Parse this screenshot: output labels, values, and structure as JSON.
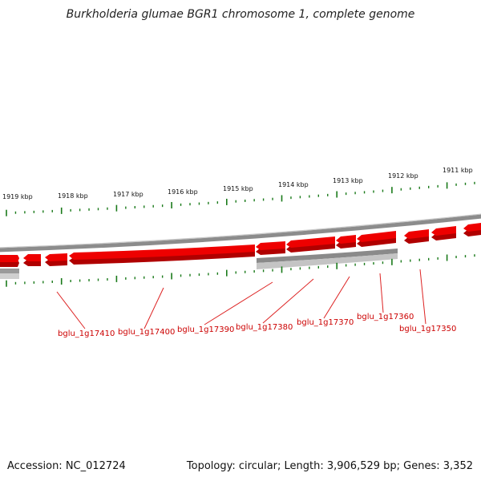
{
  "title": "Burkholderia glumae BGR1 chromosome 1, complete genome",
  "footer": {
    "accession": "Accession: NC_012724",
    "topology": "Topology: circular; Length: 3,906,529 bp; Genes: 3,352"
  },
  "colors": {
    "gene_forward": "#ee0000",
    "gene_shadow": "#b00000",
    "backbone": "#8c8c8c",
    "reverse_track": "#b8b8b8",
    "tick": "#1a7a1a",
    "label": "#cc0000"
  },
  "scale_labels": [
    "1919 kbp",
    "1918 kbp",
    "1917 kbp",
    "1916 kbp",
    "1915 kbp",
    "1914 kbp",
    "1913 kbp",
    "1912 kbp",
    "1911 kbp"
  ],
  "gene_labels": [
    "bglu_1g17410",
    "bglu_1g17400",
    "bglu_1g17390",
    "bglu_1g17380",
    "bglu_1g17370",
    "bglu_1g17360",
    "bglu_1g17350"
  ]
}
